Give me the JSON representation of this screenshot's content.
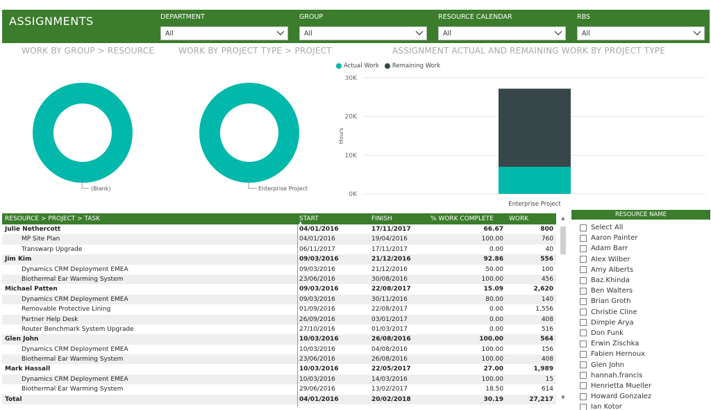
{
  "header": {
    "title": "ASSIGNMENTS",
    "filters": [
      {
        "label": "DEPARTMENT",
        "value": "All"
      },
      {
        "label": "GROUP",
        "value": "All"
      },
      {
        "label": "RESOURCE CALENDAR",
        "value": "All"
      },
      {
        "label": "RBS",
        "value": "All"
      }
    ]
  },
  "sections": {
    "group_resource": "WORK BY GROUP > RESOURCE",
    "project_type": "WORK BY PROJECT TYPE > PROJECT",
    "actual_remaining": "ASSIGNMENT ACTUAL AND REMAINING WORK BY PROJECT TYPE"
  },
  "donuts": [
    {
      "label": "(Blank)",
      "color": "#01b8aa"
    },
    {
      "label": "Enterprise Project",
      "color": "#01b8aa"
    }
  ],
  "colors": {
    "brand": "#3b7d2c",
    "actual": "#01b8aa",
    "remaining": "#374649"
  },
  "chart_data": {
    "type": "bar",
    "stacked": true,
    "categories": [
      "Enterprise Project"
    ],
    "series": [
      {
        "name": "Actual Work",
        "values": [
          7000
        ],
        "color": "#01b8aa"
      },
      {
        "name": "Remaining Work",
        "values": [
          20200
        ],
        "color": "#374649"
      }
    ],
    "ylabel": "Hours",
    "yticks": [
      "0K",
      "10K",
      "20K",
      "30K"
    ],
    "ylim": [
      0,
      30000
    ],
    "legend": "top-left",
    "grid": true
  },
  "table": {
    "columns": [
      "RESOURCE > PROJECT > TASK",
      "START",
      "FINISH",
      "% WORK COMPLETE",
      "WORK"
    ],
    "rows": [
      {
        "level": 0,
        "name": "Julie Nethercott",
        "start": "04/01/2016",
        "finish": "17/11/2017",
        "pct": "66.67",
        "work": "800"
      },
      {
        "level": 1,
        "name": "MP Site Plan",
        "start": "04/01/2016",
        "finish": "19/04/2016",
        "pct": "100.00",
        "work": "760"
      },
      {
        "level": 1,
        "name": "Transwarp Upgrade",
        "start": "06/11/2017",
        "finish": "17/11/2017",
        "pct": "0.00",
        "work": "40"
      },
      {
        "level": 0,
        "name": "Jim Kim",
        "start": "09/03/2016",
        "finish": "21/12/2016",
        "pct": "92.86",
        "work": "556"
      },
      {
        "level": 1,
        "name": "Dynamics CRM Deployment EMEA",
        "start": "09/03/2016",
        "finish": "21/12/2016",
        "pct": "50.00",
        "work": "100"
      },
      {
        "level": 1,
        "name": "Biothermal Ear Warming System",
        "start": "23/06/2016",
        "finish": "30/08/2016",
        "pct": "100.00",
        "work": "456"
      },
      {
        "level": 0,
        "name": "Michael Patten",
        "start": "09/03/2016",
        "finish": "22/08/2017",
        "pct": "15.09",
        "work": "2,620"
      },
      {
        "level": 1,
        "name": "Dynamics CRM Deployment EMEA",
        "start": "09/03/2016",
        "finish": "30/11/2016",
        "pct": "80.00",
        "work": "140"
      },
      {
        "level": 1,
        "name": "Removable Protective Lining",
        "start": "01/09/2016",
        "finish": "22/08/2017",
        "pct": "0.00",
        "work": "1,556"
      },
      {
        "level": 1,
        "name": "Partner Help Desk",
        "start": "26/09/2016",
        "finish": "03/01/2017",
        "pct": "0.00",
        "work": "408"
      },
      {
        "level": 1,
        "name": "Router Benchmark System Upgrade",
        "start": "27/10/2016",
        "finish": "01/03/2017",
        "pct": "0.00",
        "work": "516"
      },
      {
        "level": 0,
        "name": "Glen John",
        "start": "10/03/2016",
        "finish": "26/08/2016",
        "pct": "100.00",
        "work": "564"
      },
      {
        "level": 1,
        "name": "Dynamics CRM Deployment EMEA",
        "start": "10/03/2016",
        "finish": "04/08/2016",
        "pct": "100.00",
        "work": "156"
      },
      {
        "level": 1,
        "name": "Biothermal Ear Warming System",
        "start": "23/06/2016",
        "finish": "26/08/2016",
        "pct": "100.00",
        "work": "408"
      },
      {
        "level": 0,
        "name": "Mark Hassall",
        "start": "10/03/2016",
        "finish": "22/05/2017",
        "pct": "27.00",
        "work": "1,989"
      },
      {
        "level": 1,
        "name": "Dynamics CRM Deployment EMEA",
        "start": "10/03/2016",
        "finish": "14/03/2016",
        "pct": "100.00",
        "work": "15"
      },
      {
        "level": 1,
        "name": "Biothermal Ear Warming System",
        "start": "29/06/2016",
        "finish": "13/02/2017",
        "pct": "18.50",
        "work": "614"
      },
      {
        "level": 0,
        "name": "Total",
        "start": "04/01/2016",
        "finish": "20/02/2018",
        "pct": "30.19",
        "work": "27,217"
      }
    ]
  },
  "slicer": {
    "title": "RESOURCE NAME",
    "items": [
      "Select All",
      "Aaron Painter",
      "Adam Barr",
      "Alex Wilber",
      "Amy Alberts",
      "Baz.Khinda",
      "Ben Walters",
      "Brian Groth",
      "Christie Cline",
      "Dimple Arya",
      "Don Funk",
      "Erwin Zischka",
      "Fabien Hernoux",
      "Glen John",
      "hannah.francis",
      "Henrietta Mueller",
      "Howard Gonzalez",
      "Ian Kotor"
    ]
  }
}
